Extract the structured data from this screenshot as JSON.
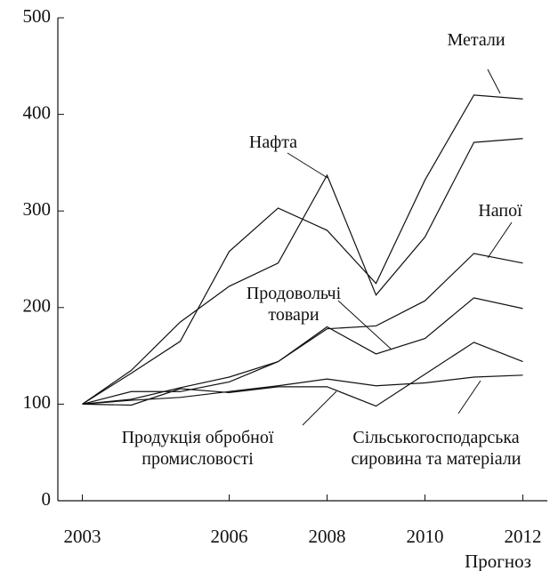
{
  "chart_data": {
    "type": "line",
    "x": [
      2003,
      2004,
      2005,
      2006,
      2007,
      2008,
      2009,
      2010,
      2011,
      2012
    ],
    "series": [
      {
        "name": "Метали",
        "color": "#111111",
        "values": [
          100,
          132,
          165,
          258,
          303,
          280,
          225,
          332,
          420,
          416
        ]
      },
      {
        "name": "Нафта",
        "color": "#111111",
        "values": [
          100,
          135,
          185,
          222,
          246,
          337,
          213,
          273,
          371,
          375
        ]
      },
      {
        "name": "Напої",
        "color": "#111111",
        "values": [
          100,
          113,
          113,
          123,
          144,
          178,
          181,
          207,
          256,
          246
        ]
      },
      {
        "name": "Продовольчі товари",
        "color": "#111111",
        "values": [
          100,
          105,
          117,
          128,
          144,
          180,
          152,
          168,
          210,
          199
        ]
      },
      {
        "name": "Продукція обробної промисловості",
        "color": "#111111",
        "values": [
          100,
          99,
          116,
          112,
          118,
          118,
          98,
          131,
          164,
          144
        ]
      },
      {
        "name": "Сільськогосподарська сировина та матеріали",
        "color": "#111111",
        "values": [
          100,
          104,
          107,
          113,
          119,
          126,
          119,
          122,
          128,
          130
        ]
      }
    ],
    "xlim": [
      2002.5,
      2012.5
    ],
    "xticks": [
      2003,
      2006,
      2008,
      2010,
      2012
    ],
    "ylim": [
      0,
      500
    ],
    "yticks": [
      0,
      100,
      200,
      300,
      400,
      500
    ],
    "annotations": [
      "Прогноз"
    ]
  }
}
